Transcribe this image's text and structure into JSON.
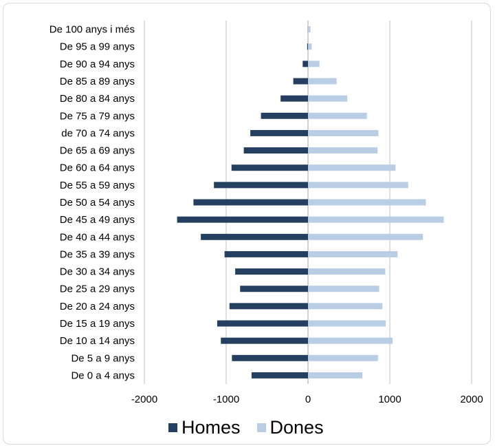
{
  "chart_data": {
    "type": "bar",
    "orientation": "horizontal",
    "categories": [
      "De 100 anys i més",
      "De 95 a 99 anys",
      "De 90 a 94 anys",
      "De 85 a 89 anys",
      "De 80 a 84 anys",
      "De 75 a 79 anys",
      "de 70 a 74 anys",
      "De 65 a 69 anys",
      "De 60 a 64 anys",
      "De 55 a 59 anys",
      "De 50 a 54 anys",
      "De 45 a 49 anys",
      "De 40 a 44 anys",
      "De 35 a 39 anys",
      "De 30 a 34 anys",
      "De 25 a 29 anys",
      "De 20 a 24 anys",
      "De 15 a 19 anys",
      "De 10 a 14 anys",
      "De 5 a 9 anys",
      "De 0 a 4 anys"
    ],
    "series": [
      {
        "name": "Homes",
        "color": "#243f60",
        "values": [
          -2,
          -10,
          -65,
          -180,
          -335,
          -575,
          -705,
          -785,
          -935,
          -1150,
          -1400,
          -1600,
          -1310,
          -1020,
          -890,
          -830,
          -960,
          -1110,
          -1065,
          -930,
          -690
        ]
      },
      {
        "name": "Dones",
        "color": "#b9cde5",
        "values": [
          30,
          45,
          140,
          350,
          480,
          720,
          860,
          850,
          1070,
          1225,
          1440,
          1660,
          1405,
          1095,
          945,
          870,
          910,
          950,
          1035,
          855,
          665
        ]
      }
    ],
    "xlim": [
      -2000,
      2000
    ],
    "xticks": [
      -2000,
      -1000,
      0,
      1000,
      2000
    ],
    "grid": "vertical",
    "legend_position": "bottom"
  }
}
